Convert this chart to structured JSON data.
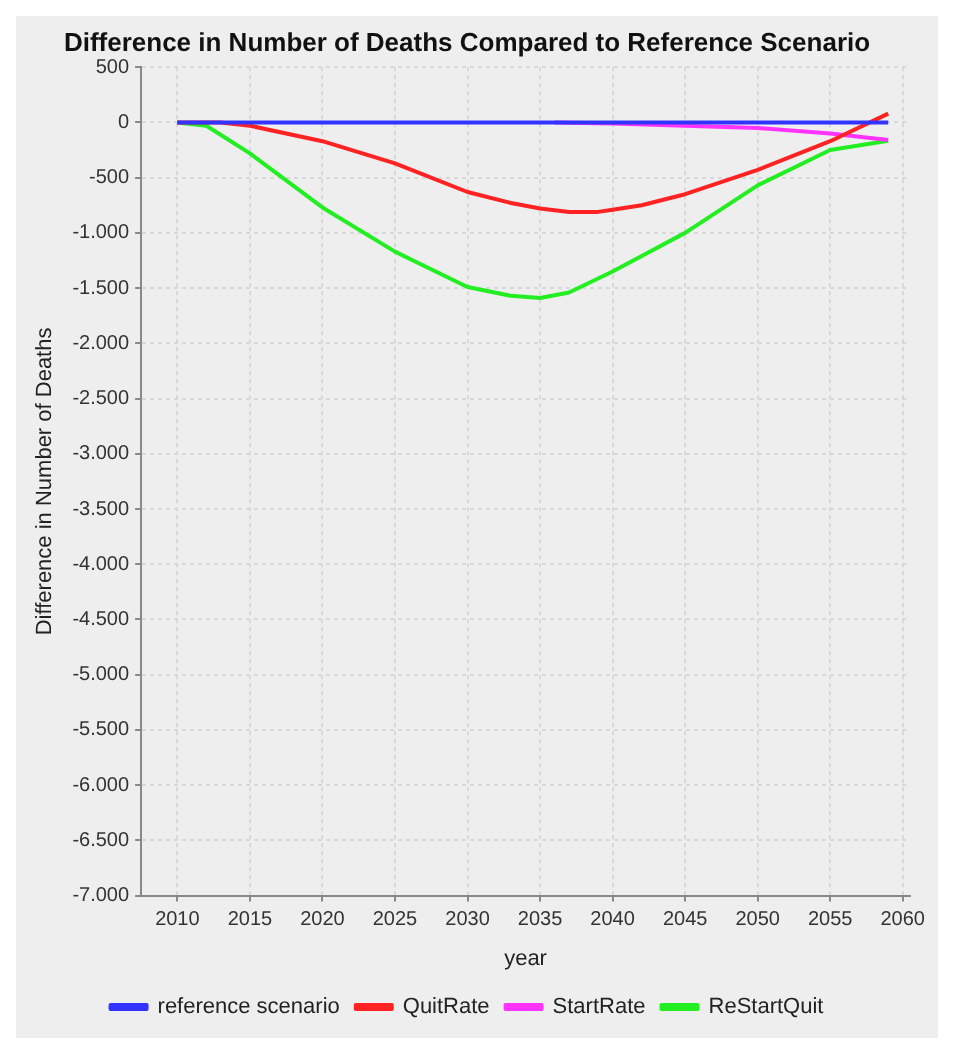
{
  "chart_data": {
    "type": "line",
    "title": "Difference in Number of Deaths Compared to Reference Scenario",
    "xlabel": "year",
    "ylabel": "Difference in Number of Deaths",
    "xlim": [
      2007.5,
      2060.5
    ],
    "xticks": [
      2010,
      2015,
      2020,
      2025,
      2030,
      2035,
      2040,
      2045,
      2050,
      2055,
      {
        "value": 2060,
        "label": "2060"
      }
    ],
    "ylim": [
      -7000,
      500
    ],
    "yticks": [
      500,
      0,
      {
        "value": -500,
        "label": "-500"
      },
      {
        "value": -1000,
        "label": "-1.000"
      },
      {
        "value": -1500,
        "label": "-1.500"
      },
      {
        "value": -2000,
        "label": "-2.000"
      },
      {
        "value": -2500,
        "label": "-2.500"
      },
      {
        "value": -3000,
        "label": "-3.000"
      },
      {
        "value": -3500,
        "label": "-3.500"
      },
      {
        "value": -4000,
        "label": "-4.000"
      },
      {
        "value": -4500,
        "label": "-4.500"
      },
      {
        "value": -5000,
        "label": "-5.000"
      },
      {
        "value": -5500,
        "label": "-5.500"
      },
      {
        "value": -6000,
        "label": "-6.000"
      },
      {
        "value": -6500,
        "label": "-6.500"
      },
      {
        "value": -7000,
        "label": "-7.000"
      }
    ],
    "grid": true,
    "legend": "bottom",
    "marker": "none",
    "line_style": "solid",
    "series": [
      {
        "name": "reference scenario",
        "color": "#3333ff",
        "x": [
          2010,
          2020,
          2030,
          2040,
          2050,
          2059
        ],
        "values": [
          0,
          0,
          0,
          0,
          0,
          0
        ]
      },
      {
        "name": "QuitRate",
        "color": "#ff2222",
        "x": [
          2010,
          2013,
          2015,
          2020,
          2025,
          2030,
          2033,
          2035,
          2037,
          2039,
          2040,
          2042,
          2045,
          2050,
          2055,
          2059
        ],
        "values": [
          0,
          0,
          -30,
          -170,
          -370,
          -630,
          -730,
          -780,
          -810,
          -810,
          -790,
          -750,
          -650,
          -430,
          -170,
          80
        ]
      },
      {
        "name": "StartRate",
        "color": "#ff33ff",
        "x": [
          2036,
          2040,
          2045,
          2050,
          2055,
          2059
        ],
        "values": [
          0,
          -10,
          -30,
          -50,
          -100,
          -160
        ]
      },
      {
        "name": "ReStartQuit",
        "color": "#22ee22",
        "x": [
          2010,
          2012,
          2015,
          2020,
          2025,
          2030,
          2033,
          2035,
          2037,
          2040,
          2045,
          2050,
          2055,
          2059
        ],
        "values": [
          0,
          -30,
          -280,
          -770,
          -1170,
          -1490,
          -1570,
          -1590,
          -1540,
          -1350,
          -1000,
          -570,
          -250,
          -165
        ]
      }
    ]
  }
}
